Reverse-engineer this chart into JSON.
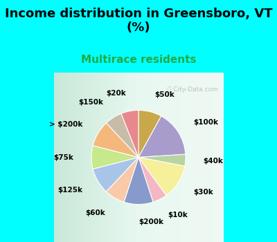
{
  "title": "Income distribution in Greensboro, VT\n(%)",
  "subtitle": "Multirace residents",
  "watermark": "ⓘ City-Data.com",
  "background_color": "#00FFFF",
  "chart_bg_left": "#d4ede0",
  "chart_bg_right": "#e8f5f0",
  "labels": [
    "$50k",
    "$100k",
    "$40k",
    "$30k",
    "$10k",
    "$200k",
    "$60k",
    "$125k",
    "$75k",
    "> $200k",
    "$150k",
    "$20k"
  ],
  "values": [
    8,
    16,
    4,
    12,
    5,
    10,
    7,
    9,
    8,
    9,
    6,
    6
  ],
  "colors": [
    "#c8a84b",
    "#a89ccc",
    "#b8d4a0",
    "#f5f099",
    "#f4b8c4",
    "#8899cc",
    "#f9c9a8",
    "#a8c4e8",
    "#c8e88c",
    "#f5b87c",
    "#c8bca8",
    "#e8888c"
  ],
  "title_fontsize": 13,
  "subtitle_fontsize": 11,
  "subtitle_color": "#22aa44",
  "label_fontsize": 7.5
}
